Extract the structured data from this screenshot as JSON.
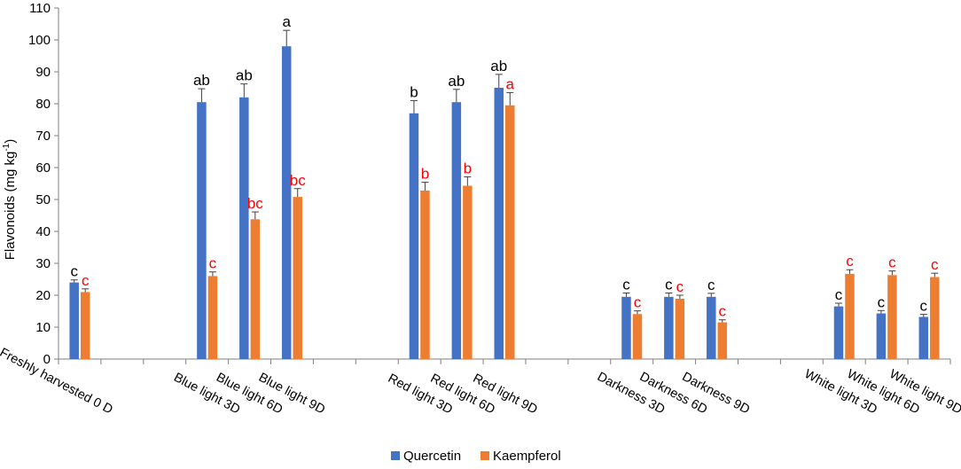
{
  "chart_data": {
    "type": "bar",
    "ylabel": "Flavonoids (mg kg",
    "ylabel_sup": "-1",
    "ylabel_close": ")",
    "ylim": [
      0,
      110
    ],
    "yticks": [
      0,
      10,
      20,
      30,
      40,
      50,
      60,
      70,
      80,
      90,
      100,
      110
    ],
    "grid": false,
    "legend_position": "bottom-center",
    "categories": [
      "Freshly harvested  0 D",
      "",
      "",
      "Blue light 3D",
      "Blue light 6D",
      "Blue light 9D",
      "",
      "",
      "Red light 3D",
      "Red light 6D",
      "Red light 9D",
      "",
      "",
      "Darkness 3D",
      "Darkness 6D",
      "Darkness 9D",
      "",
      "",
      "White light 3D",
      "White light 6D",
      "White light 9D"
    ],
    "series": [
      {
        "name": "Quercetin",
        "color": "#4472C4",
        "label_color": "#000000",
        "values": [
          24,
          null,
          null,
          80.5,
          82,
          98,
          null,
          null,
          77,
          80.5,
          85,
          null,
          null,
          19.5,
          19.5,
          19.5,
          null,
          null,
          16.5,
          14.3,
          13.2
        ],
        "errors": [
          0.8,
          null,
          null,
          4.2,
          4.2,
          5,
          null,
          null,
          4,
          4,
          4.2,
          null,
          null,
          1.2,
          1.2,
          1.1,
          null,
          null,
          1,
          0.9,
          0.8
        ],
        "labels": [
          "c",
          null,
          null,
          "ab",
          "ab",
          "a",
          null,
          null,
          "b",
          "ab",
          "ab",
          null,
          null,
          "c",
          "c",
          "c",
          null,
          null,
          "c",
          "c",
          "c"
        ]
      },
      {
        "name": "Kaempferol",
        "color": "#ED7D31",
        "label_color": "#FF0000",
        "values": [
          21,
          null,
          null,
          26,
          43.8,
          50.8,
          null,
          null,
          52.8,
          54.3,
          79.5,
          null,
          null,
          14.1,
          18.9,
          11.5,
          null,
          null,
          26.7,
          26.3,
          25.7
        ],
        "errors": [
          1,
          null,
          null,
          1.3,
          2.3,
          2.6,
          null,
          null,
          2.6,
          2.8,
          4,
          null,
          null,
          1,
          1.1,
          0.8,
          null,
          null,
          1.3,
          1.3,
          1.2
        ],
        "labels": [
          "c",
          null,
          null,
          "c",
          "bc",
          "bc",
          null,
          null,
          "b",
          "b",
          "a",
          null,
          null,
          "c",
          "c",
          "c",
          null,
          null,
          "c",
          "c",
          "c"
        ]
      }
    ]
  }
}
